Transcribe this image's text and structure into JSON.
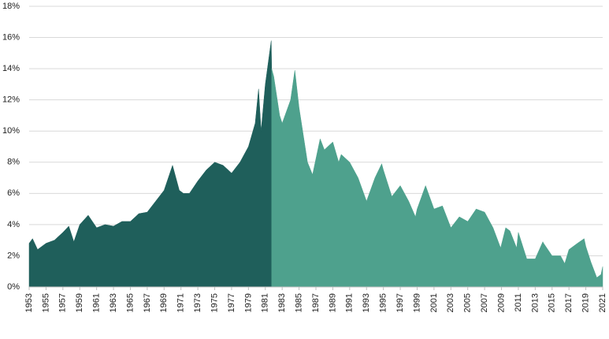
{
  "chart_data": {
    "type": "area",
    "xlim": [
      1953,
      2021
    ],
    "xticks": [
      1953,
      1955,
      1957,
      1959,
      1961,
      1963,
      1965,
      1967,
      1969,
      1971,
      1973,
      1975,
      1977,
      1979,
      1981,
      1983,
      1985,
      1987,
      1989,
      1991,
      1993,
      1995,
      1997,
      1999,
      2001,
      2003,
      2005,
      2007,
      2009,
      2011,
      2013,
      2015,
      2017,
      2019,
      2021
    ],
    "ylim": [
      0,
      18
    ],
    "yticks": [
      {
        "value": 0,
        "label": "0%"
      },
      {
        "value": 2,
        "label": "2%"
      },
      {
        "value": 4,
        "label": "4%"
      },
      {
        "value": 6,
        "label": "6%"
      },
      {
        "value": 8,
        "label": "8%"
      },
      {
        "value": 10,
        "label": "10%"
      },
      {
        "value": 12,
        "label": "12%"
      },
      {
        "value": 14,
        "label": "14%"
      },
      {
        "value": 16,
        "label": "16%"
      },
      {
        "value": 18,
        "label": "18%"
      }
    ],
    "grid": true,
    "series": [
      {
        "color": "#1f5f5b",
        "x": [
          1953,
          1953.4,
          1954,
          1955,
          1956,
          1957,
          1957.7,
          1958.3,
          1959,
          1960,
          1961,
          1962,
          1963,
          1964,
          1965,
          1966,
          1967,
          1968,
          1969,
          1970,
          1970.8,
          1971.3,
          1972,
          1973,
          1974,
          1975,
          1976,
          1977,
          1978,
          1979,
          1979.8,
          1980.2,
          1980.5,
          1981,
          1981.7,
          1981.75
        ],
        "values": [
          2.8,
          3.1,
          2.4,
          2.8,
          3.0,
          3.5,
          3.9,
          2.9,
          4.0,
          4.6,
          3.8,
          4.0,
          3.9,
          4.2,
          4.2,
          4.7,
          4.8,
          5.5,
          6.2,
          7.8,
          6.2,
          6.0,
          6.0,
          6.8,
          7.5,
          8.0,
          7.8,
          7.3,
          8.0,
          9.0,
          10.5,
          12.7,
          10.0,
          13.0,
          15.8,
          14.0
        ]
      },
      {
        "color": "#4ea18d",
        "x": [
          1981.75,
          1982,
          1982.7,
          1983,
          1984,
          1984.5,
          1985,
          1986,
          1986.6,
          1987.5,
          1988,
          1989,
          1989.7,
          1990,
          1991,
          1992,
          1993,
          1994,
          1994.8,
          1995,
          1996,
          1997,
          1998,
          1998.8,
          1999,
          2000,
          2001,
          2002,
          2003,
          2004,
          2005,
          2006,
          2007,
          2008,
          2008.9,
          2009.5,
          2010,
          2010.8,
          2011,
          2012,
          2013,
          2013.9,
          2014,
          2015,
          2016,
          2016.5,
          2017,
          2018,
          2018.8,
          2019,
          2019.6,
          2020.3,
          2020.8,
          2021
        ],
        "values": [
          14.0,
          13.5,
          11.0,
          10.5,
          12.0,
          13.9,
          11.5,
          8.0,
          7.2,
          9.5,
          8.8,
          9.3,
          8.0,
          8.5,
          8.0,
          7.0,
          5.5,
          7.0,
          7.9,
          7.5,
          5.8,
          6.5,
          5.5,
          4.5,
          5.0,
          6.5,
          5.0,
          5.2,
          3.8,
          4.5,
          4.2,
          5.0,
          4.8,
          3.8,
          2.5,
          3.8,
          3.6,
          2.5,
          3.5,
          1.8,
          1.8,
          2.9,
          2.8,
          2.0,
          2.0,
          1.5,
          2.4,
          2.8,
          3.1,
          2.6,
          1.6,
          0.6,
          0.8,
          1.3
        ]
      }
    ]
  }
}
